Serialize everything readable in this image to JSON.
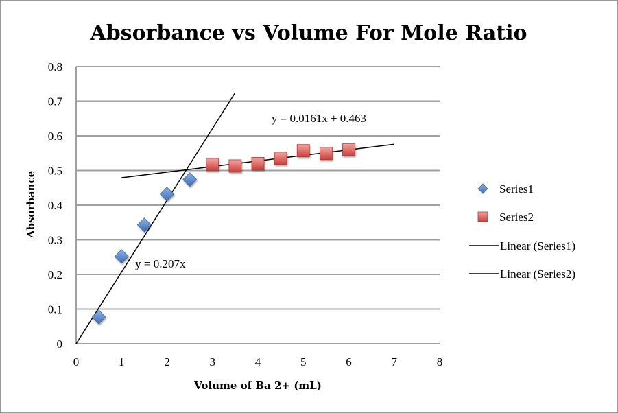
{
  "chart_data": {
    "type": "scatter",
    "title": "Absorbance vs Volume For Mole Ratio",
    "xlabel": "Volume of Ba 2+ (mL)",
    "ylabel": "Absorbance",
    "xlim": [
      0,
      8
    ],
    "ylim": [
      0,
      0.8
    ],
    "xticks": [
      0,
      1,
      2,
      3,
      4,
      5,
      6,
      7,
      8
    ],
    "yticks": [
      0,
      0.1,
      0.2,
      0.3,
      0.4,
      0.5,
      0.6,
      0.7,
      0.8
    ],
    "ytick_labels": [
      "0",
      "0.1",
      "0.2",
      "0.3",
      "0.4",
      "0.5",
      "0.6",
      "0.7",
      "0.8"
    ],
    "grid": "horizontal",
    "legend_position": "right",
    "series": [
      {
        "name": "Series1",
        "marker": "diamond",
        "color": "#4f81bd",
        "x": [
          0.5,
          1,
          1.5,
          2,
          2.5
        ],
        "y": [
          0.077,
          0.252,
          0.343,
          0.432,
          0.474
        ]
      },
      {
        "name": "Series2",
        "marker": "square",
        "color": "#d9534f",
        "x": [
          3,
          3.5,
          4,
          4.5,
          5,
          5.5,
          6
        ],
        "y": [
          0.517,
          0.513,
          0.52,
          0.535,
          0.557,
          0.549,
          0.56
        ]
      }
    ],
    "trendlines": [
      {
        "name": "Linear (Series1)",
        "slope": 0.207,
        "intercept": 0,
        "x_range": [
          0,
          3.5
        ],
        "equation": "y = 0.207x",
        "label_at": [
          1.3,
          0.22
        ]
      },
      {
        "name": "Linear (Series2)",
        "slope": 0.0161,
        "intercept": 0.463,
        "x_range": [
          1,
          7
        ],
        "equation": "y = 0.0161x + 0.463",
        "label_at": [
          4.3,
          0.64
        ]
      }
    ],
    "legend": [
      "Series1",
      "Series2",
      "Linear (Series1)",
      "Linear (Series2)"
    ]
  }
}
